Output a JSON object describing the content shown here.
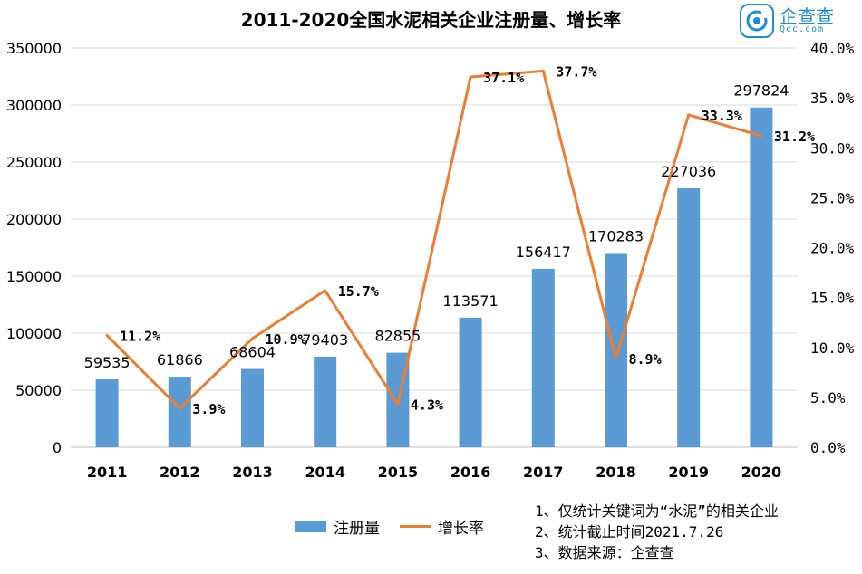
{
  "logo": {
    "name": "企查查",
    "sub": "Qcc.com"
  },
  "colors": {
    "bar": "#5b9bd5",
    "line": "#ed7d31",
    "text": "#000000"
  },
  "chart_data": {
    "type": "bar",
    "title": "2011-2020全国水泥相关企业注册量、增长率",
    "categories": [
      "2011",
      "2012",
      "2013",
      "2014",
      "2015",
      "2016",
      "2017",
      "2018",
      "2019",
      "2020"
    ],
    "series": [
      {
        "name": "注册量",
        "type": "bar",
        "axis": "left",
        "values": [
          59535,
          61866,
          68604,
          79403,
          82855,
          113571,
          156417,
          170283,
          227036,
          297824
        ],
        "labels": [
          "59535",
          "61866",
          "68604",
          "79403",
          "82855",
          "113571",
          "156417",
          "170283",
          "227036",
          "297824"
        ]
      },
      {
        "name": "增长率",
        "type": "line",
        "axis": "right",
        "values": [
          11.2,
          3.9,
          10.9,
          15.7,
          4.3,
          37.1,
          37.7,
          8.9,
          33.3,
          31.2
        ],
        "labels": [
          "11.2%",
          "3.9%",
          "10.9%",
          "15.7%",
          "4.3%",
          "37.1%",
          "37.7%",
          "8.9%",
          "33.3%",
          "31.2%"
        ]
      }
    ],
    "y_left": {
      "min": 0,
      "max": 350000,
      "ticks": [
        "0",
        "50000",
        "100000",
        "150000",
        "200000",
        "250000",
        "300000",
        "350000"
      ]
    },
    "y_right": {
      "min": 0,
      "max": 40,
      "ticks": [
        "0.0%",
        "5.0%",
        "10.0%",
        "15.0%",
        "20.0%",
        "25.0%",
        "30.0%",
        "35.0%",
        "40.0%"
      ]
    },
    "grid": "horizontal",
    "legend": "bottom"
  },
  "notes": [
    "1、仅统计关键词为“水泥”的相关企业",
    "2、统计截止时间2021.7.26",
    "3、数据来源：企查查"
  ]
}
